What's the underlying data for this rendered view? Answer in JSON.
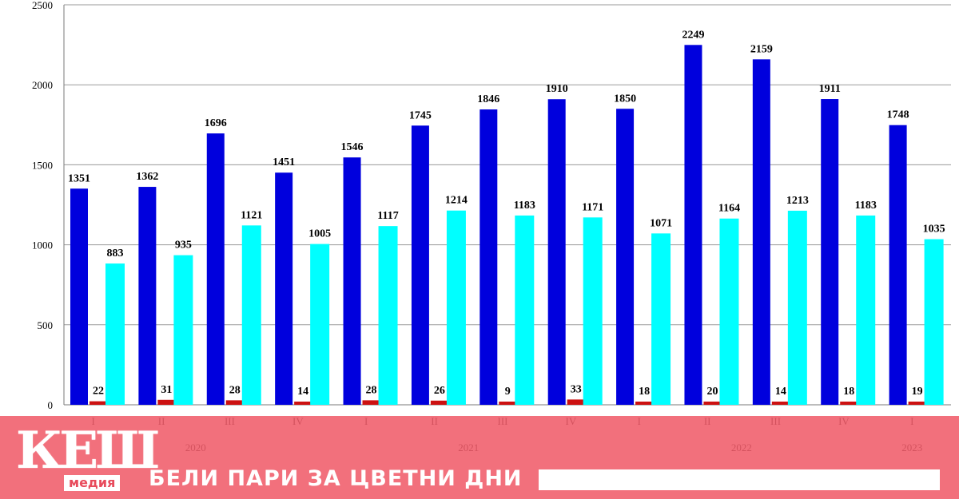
{
  "chart_data": {
    "type": "bar",
    "title": "",
    "xlabel": "",
    "ylabel": "",
    "ylim": [
      0,
      2500
    ],
    "yticks": [
      "0",
      "500",
      "1000",
      "1500",
      "2000",
      "2500"
    ],
    "categories": [
      "I",
      "II",
      "III",
      "IV",
      "I",
      "II",
      "III",
      "IV",
      "I",
      "II",
      "III",
      "IV",
      "I"
    ],
    "years": [
      {
        "label": "2020",
        "from": 0,
        "to": 3
      },
      {
        "label": "2021",
        "from": 4,
        "to": 7
      },
      {
        "label": "2022",
        "from": 8,
        "to": 11
      },
      {
        "label": "2023",
        "from": 12,
        "to": 12
      }
    ],
    "grid": true,
    "legend": "none",
    "series": [
      {
        "color": "#0000dd",
        "values": [
          1351,
          1362,
          1696,
          1451,
          1546,
          1745,
          1846,
          1910,
          1850,
          2249,
          2159,
          1911,
          1748
        ]
      },
      {
        "color": "#cc1111",
        "values": [
          22,
          31,
          28,
          14,
          28,
          26,
          9,
          33,
          18,
          20,
          14,
          18,
          19
        ]
      },
      {
        "color": "#00ffff",
        "values": [
          883,
          935,
          1121,
          1005,
          1117,
          1214,
          1183,
          1171,
          1071,
          1164,
          1213,
          1183,
          1035
        ]
      }
    ]
  },
  "banner": {
    "logo_main": "КЕШ",
    "logo_sub": "медия",
    "slogan": "БЕЛИ ПАРИ ЗА ЦВЕТНИ ДНИ"
  }
}
